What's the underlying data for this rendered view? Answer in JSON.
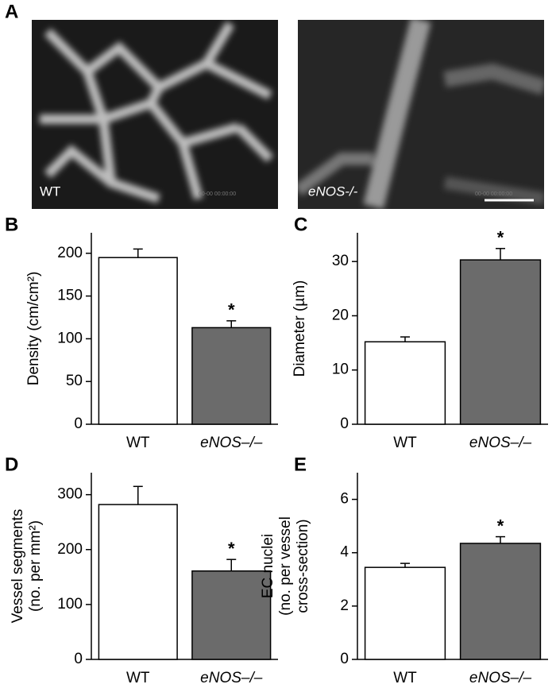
{
  "figure_a": {
    "panel": "A",
    "images": [
      {
        "label": "WT",
        "timestamp": "00-00 00:00:00"
      },
      {
        "label": "eNOS-/-",
        "timestamp": "00-00 00:00:00"
      }
    ]
  },
  "chart_data": [
    {
      "type": "bar",
      "panel": "B",
      "ylabel": [
        "Density (cm/cm²)"
      ],
      "categories": [
        "WT",
        "eNOS–/–"
      ],
      "values": [
        195,
        113
      ],
      "errors": [
        10,
        8
      ],
      "colors": [
        "#ffffff",
        "#6b6b6b"
      ],
      "significance": [
        null,
        "*"
      ],
      "ylim": [
        0,
        224
      ],
      "yticks": [
        0,
        50,
        100,
        150,
        200
      ]
    },
    {
      "type": "bar",
      "panel": "C",
      "ylabel": [
        "Diameter (µm)"
      ],
      "categories": [
        "WT",
        "eNOS–/–"
      ],
      "values": [
        15.2,
        30.3
      ],
      "errors": [
        0.9,
        2.1
      ],
      "colors": [
        "#ffffff",
        "#6b6b6b"
      ],
      "significance": [
        null,
        "*"
      ],
      "ylim": [
        0,
        35.3
      ],
      "yticks": [
        0,
        10,
        20,
        30
      ]
    },
    {
      "type": "bar",
      "panel": "D",
      "ylabel": [
        "Vessel segments",
        "(no. per mm²)"
      ],
      "categories": [
        "WT",
        "eNOS–/–"
      ],
      "values": [
        282,
        161
      ],
      "errors": [
        33,
        21
      ],
      "colors": [
        "#ffffff",
        "#6b6b6b"
      ],
      "significance": [
        null,
        "*"
      ],
      "ylim": [
        0,
        340
      ],
      "yticks": [
        0,
        100,
        200,
        300
      ]
    },
    {
      "type": "bar",
      "panel": "E",
      "ylabel": [
        "EC nuclei",
        "(no. per vessel",
        "cross-section)"
      ],
      "categories": [
        "WT",
        "eNOS–/–"
      ],
      "values": [
        3.45,
        4.35
      ],
      "errors": [
        0.15,
        0.25
      ],
      "colors": [
        "#ffffff",
        "#6b6b6b"
      ],
      "significance": [
        null,
        "*"
      ],
      "ylim": [
        0,
        7
      ],
      "yticks": [
        0,
        2,
        4,
        6
      ]
    }
  ]
}
